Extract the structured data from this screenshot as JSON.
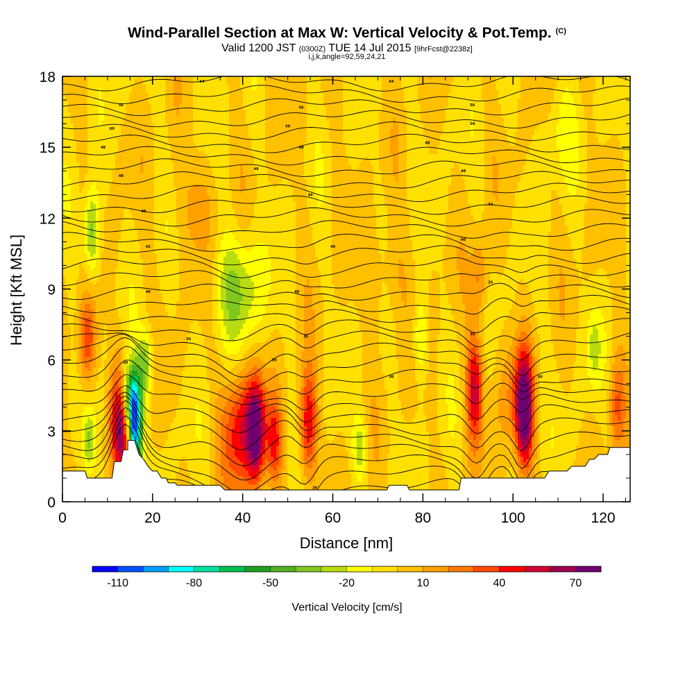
{
  "header": {
    "title": "Wind-Parallel Section at Max W: Vertical Velocity & Pot.Temp.",
    "copyright": "(C)",
    "valid_main": "Valid 1200 JST",
    "valid_utc": "(0300Z)",
    "valid_date": "TUE 14 Jul 2015",
    "forecast": "[9hrFcst@2238z]",
    "indices": "i,j,k,angle=92,59,24,21"
  },
  "chart_data": {
    "type": "heatmap",
    "xlabel": "Distance [nm]",
    "ylabel": "Height [Kft MSL]",
    "xlim": [
      0,
      126
    ],
    "ylim": [
      0,
      18
    ],
    "x_ticks": [
      "0",
      "20",
      "40",
      "60",
      "80",
      "100",
      "120"
    ],
    "y_ticks": [
      "0",
      "3",
      "6",
      "9",
      "12",
      "15",
      "18"
    ],
    "colorbar": {
      "title": "Vertical Velocity [cm/s]",
      "levels": [
        -120,
        -110,
        -100,
        -90,
        -80,
        -70,
        -60,
        -50,
        -40,
        -30,
        -20,
        -10,
        0,
        10,
        20,
        30,
        40,
        50,
        60,
        70,
        80
      ],
      "colors": [
        "#0000ff",
        "#0050ff",
        "#00a0ff",
        "#00ffff",
        "#00e0a0",
        "#00c050",
        "#20a020",
        "#50b020",
        "#80c820",
        "#b8dc10",
        "#ffff00",
        "#ffe000",
        "#ffc000",
        "#ffa000",
        "#ff7800",
        "#ff4800",
        "#ff0000",
        "#d00030",
        "#a00050",
        "#700070"
      ],
      "tick_labels": [
        "-110",
        "-80",
        "-50",
        "-20",
        "10",
        "40",
        "70"
      ]
    },
    "background_value": 0,
    "features": [
      {
        "x": 5.5,
        "h": 6.8,
        "v": 40,
        "sx": 1.4,
        "sh": 1.3
      },
      {
        "x": 6.5,
        "h": 11.4,
        "v": -40,
        "sx": 1.2,
        "sh": 1.4
      },
      {
        "x": 13,
        "h": 3.5,
        "v": 75,
        "sx": 1.6,
        "sh": 1.6
      },
      {
        "x": 16,
        "h": 3.2,
        "v": -105,
        "sx": 1.1,
        "sh": 1.4
      },
      {
        "x": 14.5,
        "h": 4.5,
        "v": -60,
        "sx": 1.5,
        "sh": 1.0
      },
      {
        "x": 18.5,
        "h": 5.8,
        "v": -35,
        "sx": 1.2,
        "sh": 1.0
      },
      {
        "x": 6,
        "h": 2.5,
        "v": -30,
        "sx": 1.0,
        "sh": 1.0
      },
      {
        "x": 30,
        "h": 12.5,
        "v": 15,
        "sx": 3.0,
        "sh": 1.5
      },
      {
        "x": 39,
        "h": 9.0,
        "v": -30,
        "sx": 4.0,
        "sh": 1.7
      },
      {
        "x": 39.5,
        "h": 3.0,
        "v": 48,
        "sx": 2.8,
        "sh": 1.8
      },
      {
        "x": 43,
        "h": 3.0,
        "v": 70,
        "sx": 1.4,
        "sh": 1.5
      },
      {
        "x": 47,
        "h": 2.5,
        "v": 40,
        "sx": 1.2,
        "sh": 1.3
      },
      {
        "x": 54.5,
        "h": 3.3,
        "v": 50,
        "sx": 1.4,
        "sh": 1.6
      },
      {
        "x": 66,
        "h": 2.3,
        "v": -25,
        "sx": 1.1,
        "sh": 0.9
      },
      {
        "x": 72,
        "h": 9.5,
        "v": 12,
        "sx": 3.5,
        "sh": 1.5
      },
      {
        "x": 79.5,
        "h": 7.0,
        "v": -25,
        "sx": 1.1,
        "sh": 1.2
      },
      {
        "x": 91.5,
        "h": 4.8,
        "v": 55,
        "sx": 1.3,
        "sh": 1.6
      },
      {
        "x": 92.5,
        "h": 9.5,
        "v": 25,
        "sx": 1.3,
        "sh": 1.2
      },
      {
        "x": 100,
        "h": 4.5,
        "v": 20,
        "sx": 2.5,
        "sh": 1.6
      },
      {
        "x": 102.5,
        "h": 3.8,
        "v": 80,
        "sx": 1.3,
        "sh": 1.7
      },
      {
        "x": 118,
        "h": 6.5,
        "v": -20,
        "sx": 1.2,
        "sh": 1.2
      },
      {
        "x": 123,
        "h": 4.0,
        "v": 30,
        "sx": 1.2,
        "sh": 1.5
      },
      {
        "x": 110,
        "h": 15.5,
        "v": -12,
        "sx": 3.0,
        "sh": 1.5
      }
    ],
    "terrain": [
      [
        0,
        1.3
      ],
      [
        5,
        1.3
      ],
      [
        5.5,
        1.0
      ],
      [
        11,
        1.0
      ],
      [
        11.5,
        1.7
      ],
      [
        13,
        1.7
      ],
      [
        13.5,
        2.2
      ],
      [
        14.5,
        2.2
      ],
      [
        14.5,
        2.6
      ],
      [
        16,
        2.6
      ],
      [
        17,
        2.0
      ],
      [
        18,
        1.8
      ],
      [
        19,
        1.5
      ],
      [
        20,
        1.3
      ],
      [
        21,
        1.3
      ],
      [
        22,
        1.0
      ],
      [
        23,
        1.0
      ],
      [
        23.5,
        0.8
      ],
      [
        25,
        0.8
      ],
      [
        25.5,
        0.7
      ],
      [
        35,
        0.7
      ],
      [
        36,
        0.5
      ],
      [
        72,
        0.5
      ],
      [
        72.5,
        0.7
      ],
      [
        76.5,
        0.7
      ],
      [
        77,
        0.5
      ],
      [
        88,
        0.5
      ],
      [
        88.5,
        1.0
      ],
      [
        107,
        1.0
      ],
      [
        108,
        1.3
      ],
      [
        112,
        1.3
      ],
      [
        113,
        1.5
      ],
      [
        116,
        1.5
      ],
      [
        117,
        1.8
      ],
      [
        118,
        1.8
      ],
      [
        119,
        2.0
      ],
      [
        121,
        2.0
      ],
      [
        121.5,
        2.3
      ],
      [
        126,
        2.3
      ]
    ],
    "contour_labels": [
      {
        "x": 31,
        "h": 17.8,
        "text": "64"
      },
      {
        "x": 73,
        "h": 17.8,
        "text": "64"
      },
      {
        "x": 13,
        "h": 16.8,
        "text": "56"
      },
      {
        "x": 53,
        "h": 16.7,
        "text": "56"
      },
      {
        "x": 91,
        "h": 16.8,
        "text": "56"
      },
      {
        "x": 11,
        "h": 15.8,
        "text": "60"
      },
      {
        "x": 50,
        "h": 15.9,
        "text": "50"
      },
      {
        "x": 91,
        "h": 16.0,
        "text": "50"
      },
      {
        "x": 9,
        "h": 15.0,
        "text": "48"
      },
      {
        "x": 53,
        "h": 15.0,
        "text": "48"
      },
      {
        "x": 81,
        "h": 15.2,
        "text": "48"
      },
      {
        "x": 13,
        "h": 13.8,
        "text": "48"
      },
      {
        "x": 43,
        "h": 14.1,
        "text": "48"
      },
      {
        "x": 89,
        "h": 14.0,
        "text": "48"
      },
      {
        "x": 18,
        "h": 12.3,
        "text": "40"
      },
      {
        "x": 55,
        "h": 13.0,
        "text": "44"
      },
      {
        "x": 95,
        "h": 12.6,
        "text": "44"
      },
      {
        "x": 19,
        "h": 10.8,
        "text": "42"
      },
      {
        "x": 60,
        "h": 10.8,
        "text": "40"
      },
      {
        "x": 89,
        "h": 11.1,
        "text": "40"
      },
      {
        "x": 19,
        "h": 8.9,
        "text": "40"
      },
      {
        "x": 52,
        "h": 8.9,
        "text": "40"
      },
      {
        "x": 95,
        "h": 9.3,
        "text": "35"
      },
      {
        "x": 28,
        "h": 6.9,
        "text": "35"
      },
      {
        "x": 54,
        "h": 7.0,
        "text": "35"
      },
      {
        "x": 91,
        "h": 7.1,
        "text": "35"
      },
      {
        "x": 14,
        "h": 5.9,
        "text": "30"
      },
      {
        "x": 47,
        "h": 6.0,
        "text": "30"
      },
      {
        "x": 73,
        "h": 5.3,
        "text": "30"
      },
      {
        "x": 106,
        "h": 5.3,
        "text": "30"
      },
      {
        "x": 56,
        "h": 0.6,
        "text": "20"
      }
    ]
  }
}
